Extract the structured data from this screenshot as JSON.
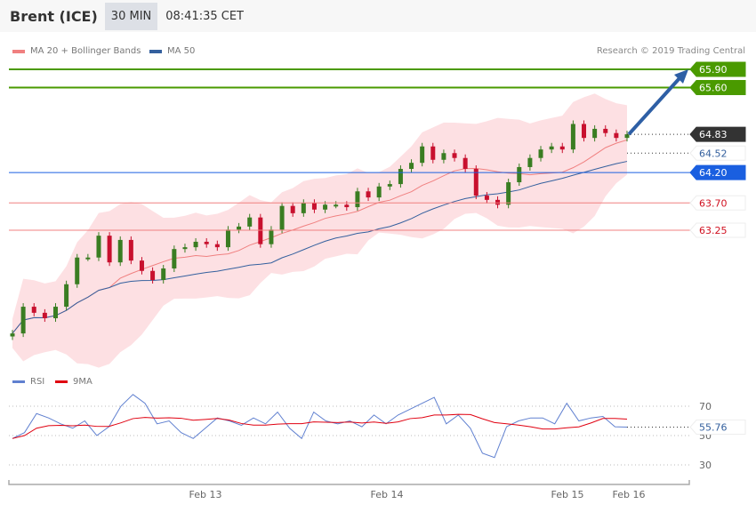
{
  "header": {
    "title": "Brent (ICE)",
    "timeframe": "30 MIN",
    "time": "08:41:35 CET"
  },
  "legend": {
    "ma20": "MA 20 + Bollinger Bands",
    "ma50": "MA 50",
    "rsi": "RSI",
    "rsi_ma": "9MA"
  },
  "copyright": "Research © 2019 Trading Central",
  "colors": {
    "up": "#3a7d22",
    "down": "#c8102e",
    "ma20": "#f08080",
    "ma50": "#34609e",
    "band": "#fde0e3",
    "resistance": "#4a9a00",
    "pivot": "#1a5fe0",
    "support": "#f08080",
    "rsi": "#6080d0",
    "rsi_ma": "#e00010",
    "arrow": "#2e5fa5"
  },
  "chart_data": [
    {
      "type": "candlestick",
      "x_ticks": [
        "Feb 13",
        "Feb 14",
        "Feb 15",
        "Feb 16"
      ],
      "closes": [
        61.55,
        61.99,
        61.89,
        61.8,
        61.99,
        62.36,
        62.8,
        62.8,
        63.16,
        62.72,
        63.09,
        62.75,
        62.58,
        62.43,
        62.62,
        62.94,
        62.97,
        63.06,
        63.02,
        62.97,
        63.26,
        63.31,
        63.46,
        63.02,
        63.26,
        63.65,
        63.53,
        63.7,
        63.59,
        63.67,
        63.67,
        63.63,
        63.89,
        63.79,
        63.97,
        64.01,
        64.26,
        64.36,
        64.63,
        64.41,
        64.52,
        64.44,
        64.26,
        63.82,
        63.75,
        63.67,
        64.04,
        64.29,
        64.44,
        64.58,
        64.63,
        64.58,
        65.0,
        64.77,
        64.92,
        64.85,
        64.77,
        64.83
      ],
      "ylim": [
        60.9,
        66.4
      ],
      "levels": [
        {
          "label": "65.90",
          "value": 65.9,
          "kind": "resistance"
        },
        {
          "label": "65.60",
          "value": 65.6,
          "kind": "resistance"
        },
        {
          "label": "64.83",
          "value": 64.83,
          "kind": "last"
        },
        {
          "label": "64.52",
          "value": 64.52,
          "kind": "ma50"
        },
        {
          "label": "64.20",
          "value": 64.2,
          "kind": "pivot"
        },
        {
          "label": "63.70",
          "value": 63.7,
          "kind": "support"
        },
        {
          "label": "63.25",
          "value": 63.25,
          "kind": "support"
        }
      ],
      "target": 65.9
    },
    {
      "type": "line",
      "name": "RSI",
      "ylim": [
        15,
        85
      ],
      "y_ticks": [
        "70",
        "50",
        "30"
      ],
      "last_label": "55.76",
      "values": [
        48,
        52,
        65,
        62,
        58,
        55,
        60,
        50,
        56,
        70,
        78,
        72,
        58,
        60,
        52,
        48,
        55,
        62,
        60,
        57,
        62,
        58,
        66,
        55,
        48,
        66,
        60,
        58,
        60,
        56,
        64,
        58,
        64,
        68,
        72,
        76,
        58,
        64,
        55,
        38,
        35,
        56,
        60,
        62,
        62,
        58,
        72,
        60,
        62,
        63,
        56,
        55.76
      ]
    }
  ]
}
